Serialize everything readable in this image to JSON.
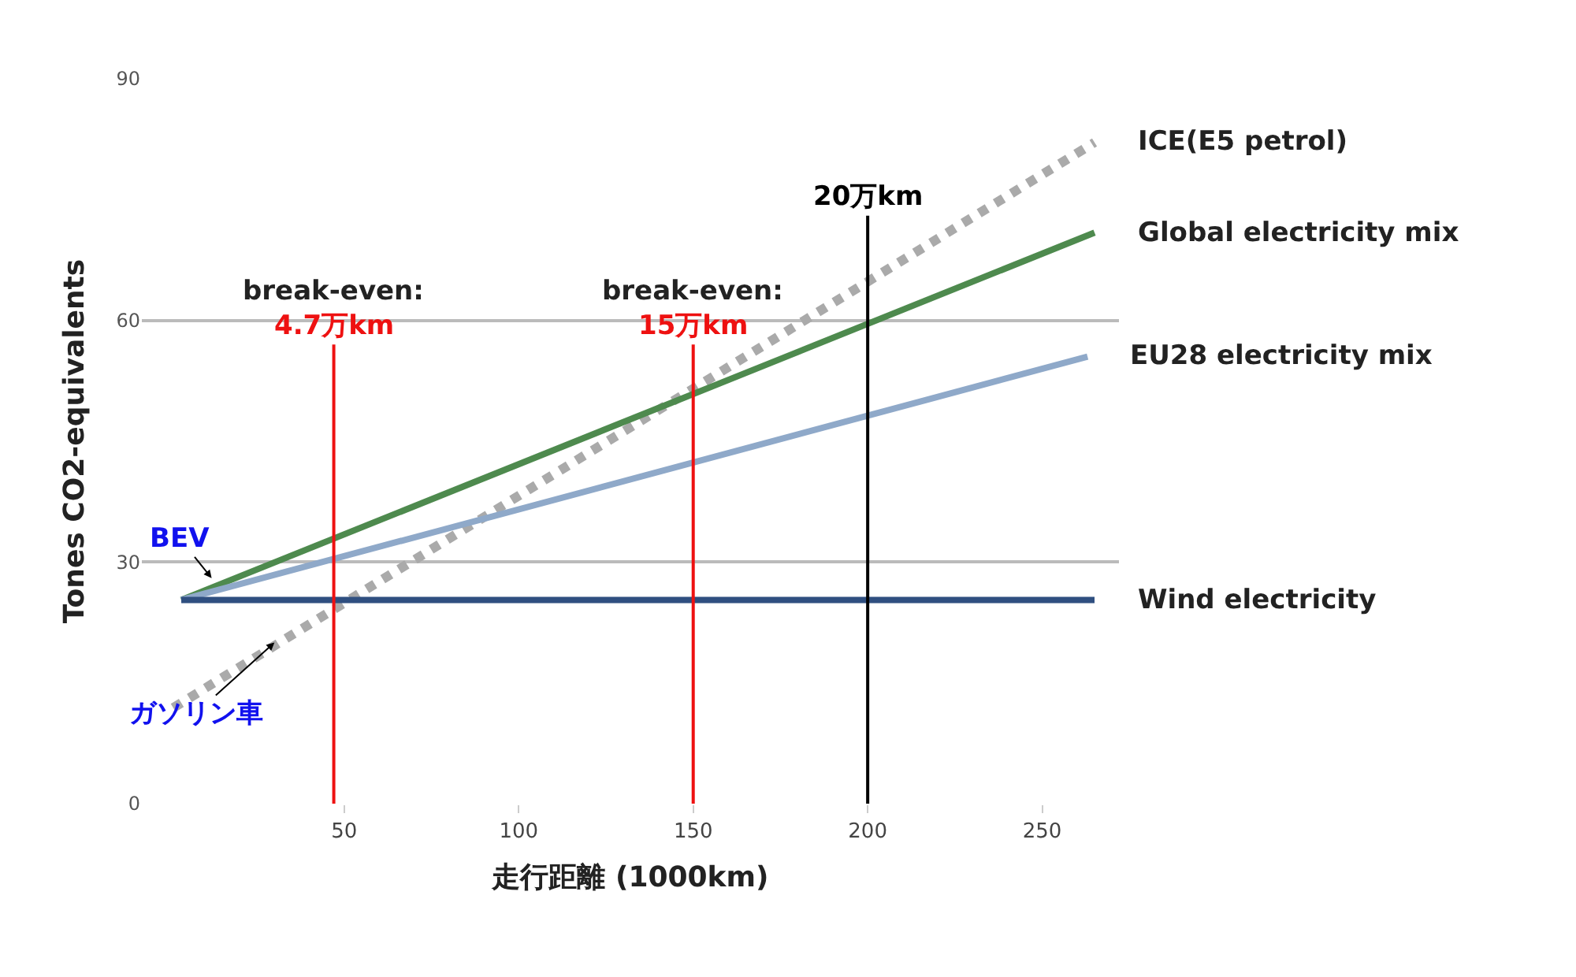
{
  "chart_data": {
    "type": "line",
    "xlabel": "走行距離 (1000km)",
    "ylabel": "Tones CO2-equivalents",
    "xlim": [
      -8,
      272
    ],
    "xticks": [
      50,
      100,
      150,
      200,
      250
    ],
    "ylim": [
      0,
      90
    ],
    "yticks": [
      0,
      30,
      60,
      90
    ],
    "grid": "y",
    "legend": false,
    "marker": "none",
    "series": [
      {
        "name": "ICE(E5 petrol)",
        "color": "#aaaaaa",
        "line_style": "dotted",
        "x": [
          1,
          265
        ],
        "values": [
          11.9,
          82.1
        ]
      },
      {
        "name": "Global electricity mix",
        "color": "#4e8a4e",
        "line_style": "solid",
        "x": [
          3.3,
          265
        ],
        "values": [
          25.3,
          70.9
        ]
      },
      {
        "name": "EU28 electricity mix",
        "color": "#8fa9c9",
        "line_style": "solid",
        "x": [
          3.3,
          263
        ],
        "values": [
          25.3,
          55.5
        ]
      },
      {
        "name": "Wind electricity",
        "color": "#2f4f80",
        "line_style": "solid",
        "x": [
          3.3,
          265
        ],
        "values": [
          25.3,
          25.3
        ]
      }
    ],
    "ref_lines": [
      {
        "axis": "x",
        "value": 47,
        "label": "4.7万km",
        "color": "#ee1111"
      },
      {
        "axis": "x",
        "value": 150,
        "label": "15万km",
        "color": "#ee1111"
      },
      {
        "axis": "x",
        "value": 200,
        "label": "20万km",
        "color": "#000000"
      }
    ],
    "annotations": [
      "break-even:",
      "break-even:",
      {
        "text": "BEV",
        "x": 12,
        "y": 28
      },
      {
        "text": "ガソリン車",
        "x": 30,
        "y": 20
      }
    ]
  }
}
